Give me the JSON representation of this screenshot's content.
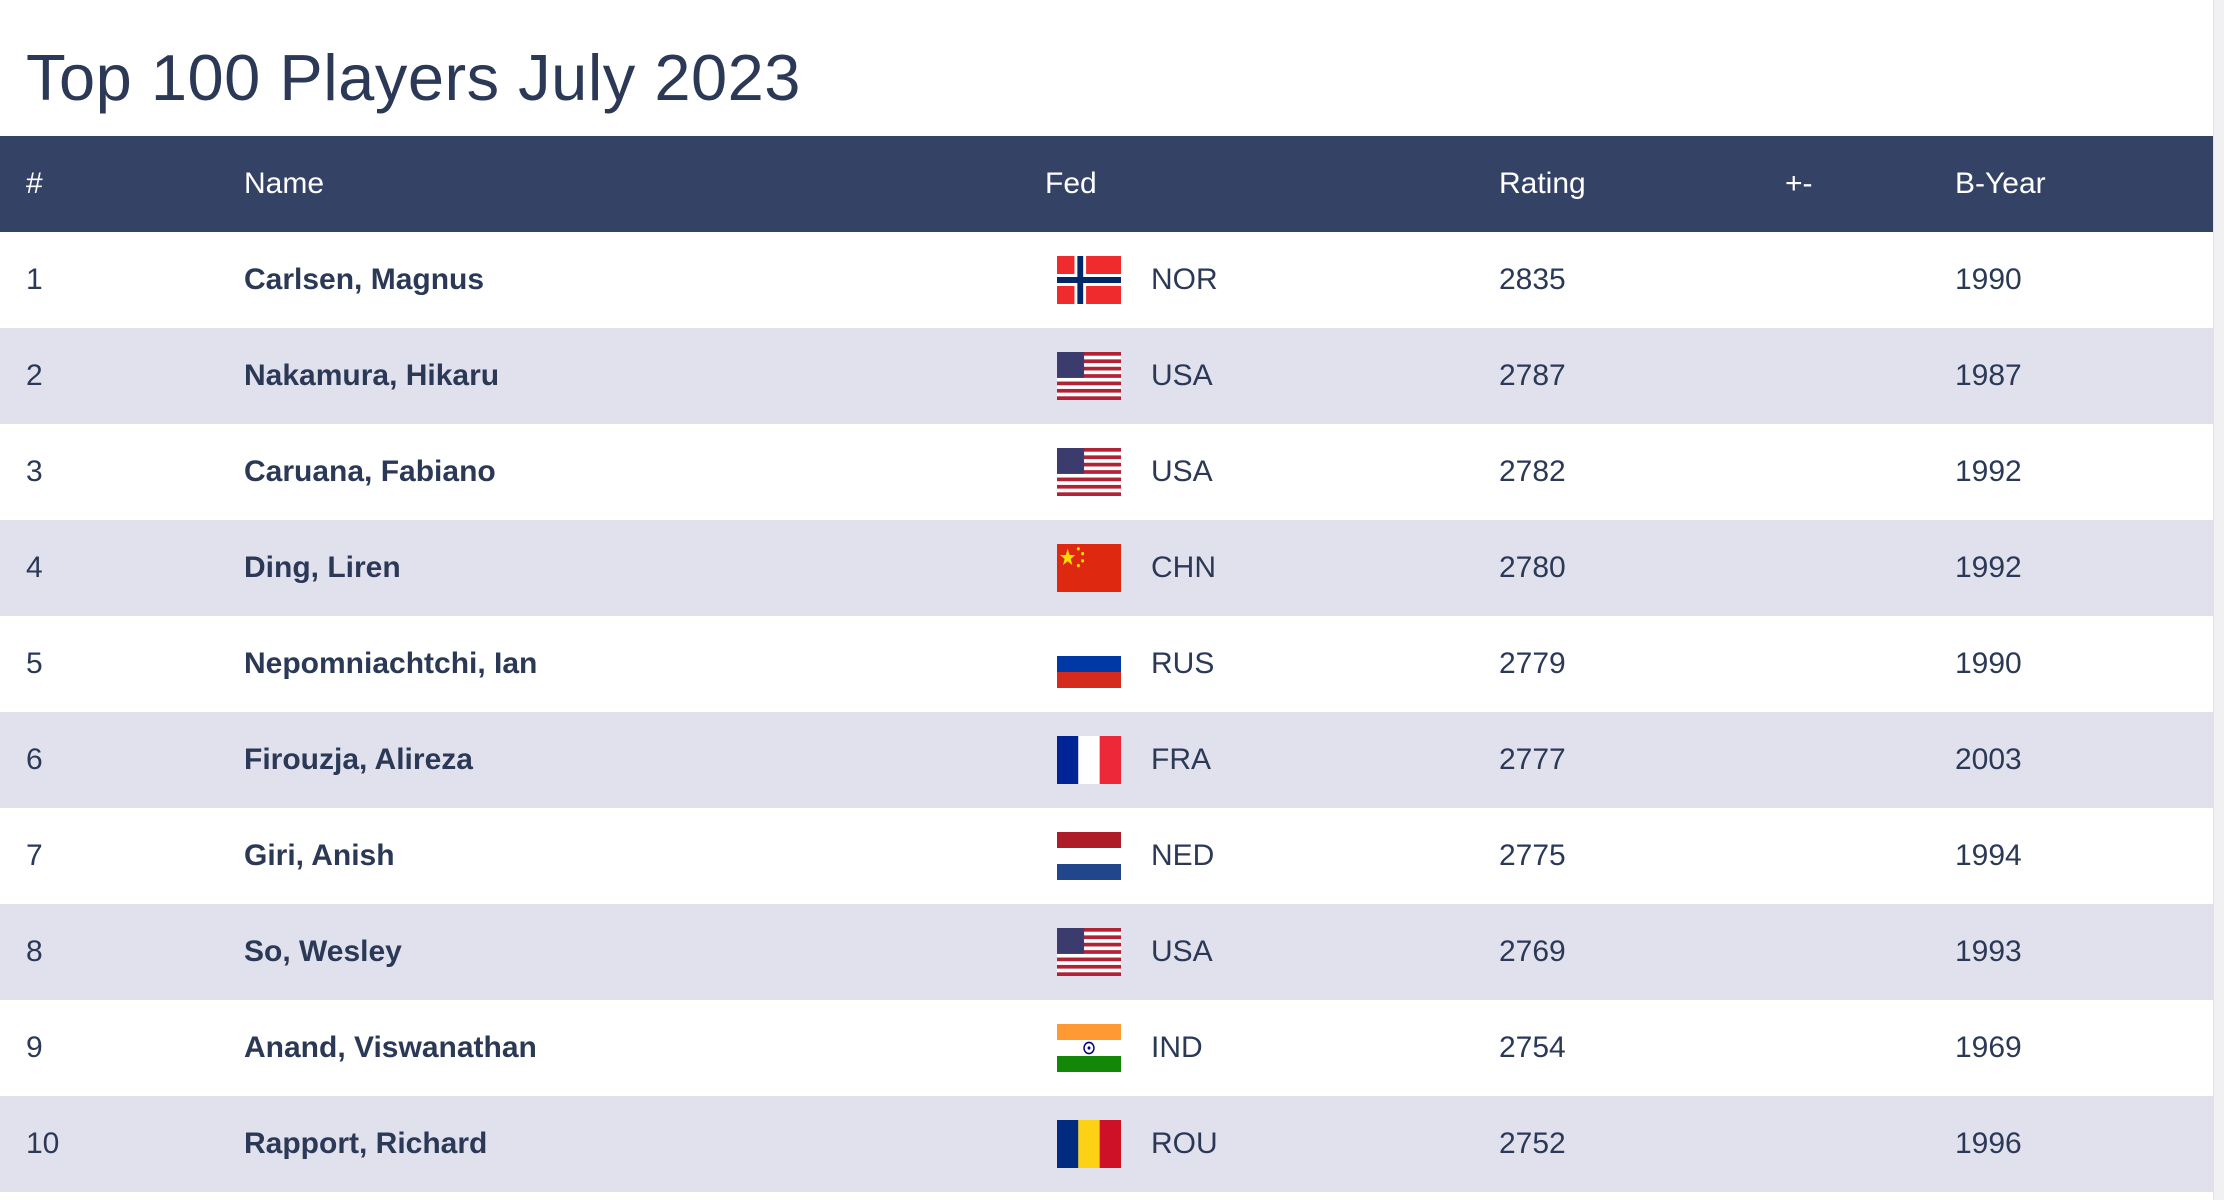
{
  "page": {
    "title": "Top 100 Players July 2023"
  },
  "table": {
    "headers": {
      "rank": "#",
      "name": "Name",
      "fed": "Fed",
      "rating": "Rating",
      "change": "+-",
      "byear": "B-Year"
    },
    "rows": [
      {
        "rank": "1",
        "name": "Carlsen, Magnus",
        "fed": "NOR",
        "flag": "norway-flag-icon",
        "rating": "2835",
        "change": "",
        "byear": "1990"
      },
      {
        "rank": "2",
        "name": "Nakamura, Hikaru",
        "fed": "USA",
        "flag": "usa-flag-icon",
        "rating": "2787",
        "change": "",
        "byear": "1987"
      },
      {
        "rank": "3",
        "name": "Caruana, Fabiano",
        "fed": "USA",
        "flag": "usa-flag-icon",
        "rating": "2782",
        "change": "",
        "byear": "1992"
      },
      {
        "rank": "4",
        "name": "Ding, Liren",
        "fed": "CHN",
        "flag": "china-flag-icon",
        "rating": "2780",
        "change": "",
        "byear": "1992"
      },
      {
        "rank": "5",
        "name": "Nepomniachtchi, Ian",
        "fed": "RUS",
        "flag": "russia-flag-icon",
        "rating": "2779",
        "change": "",
        "byear": "1990"
      },
      {
        "rank": "6",
        "name": "Firouzja, Alireza",
        "fed": "FRA",
        "flag": "france-flag-icon",
        "rating": "2777",
        "change": "",
        "byear": "2003"
      },
      {
        "rank": "7",
        "name": "Giri, Anish",
        "fed": "NED",
        "flag": "netherlands-flag-icon",
        "rating": "2775",
        "change": "",
        "byear": "1994"
      },
      {
        "rank": "8",
        "name": "So, Wesley",
        "fed": "USA",
        "flag": "usa-flag-icon",
        "rating": "2769",
        "change": "",
        "byear": "1993"
      },
      {
        "rank": "9",
        "name": "Anand, Viswanathan",
        "fed": "IND",
        "flag": "india-flag-icon",
        "rating": "2754",
        "change": "",
        "byear": "1969"
      },
      {
        "rank": "10",
        "name": "Rapport, Richard",
        "fed": "ROU",
        "flag": "romania-flag-icon",
        "rating": "2752",
        "change": "",
        "byear": "1996"
      }
    ]
  },
  "colors": {
    "header_bg": "#344266",
    "stripe": "#e1e1ee",
    "text": "#2b3957"
  }
}
